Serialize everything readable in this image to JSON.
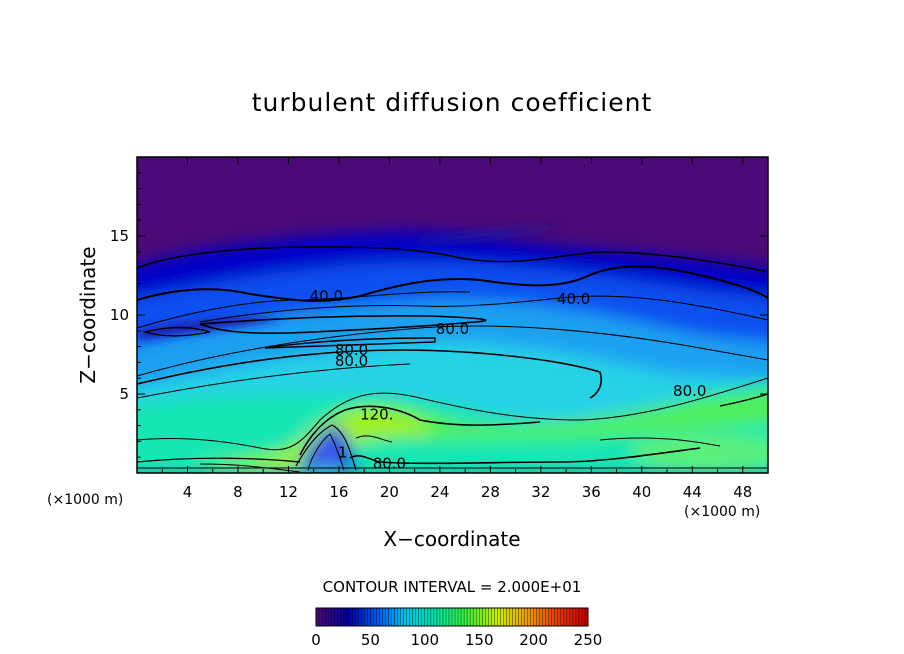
{
  "chart_data": {
    "type": "heatmap",
    "title": "turbulent diffusion coefficient",
    "xlabel": "X−coordinate",
    "ylabel": "Z−coordinate",
    "x_unit": "(×1000 m)",
    "y_unit": "(×1000 m)",
    "xlim": [
      0,
      50
    ],
    "ylim": [
      0,
      20
    ],
    "x_ticks": [
      4,
      8,
      12,
      16,
      20,
      24,
      28,
      32,
      36,
      40,
      44,
      48
    ],
    "y_ticks": [
      5,
      10,
      15
    ],
    "contour_interval_text": "CONTOUR INTERVAL = 2.000E+01",
    "contour_labels": [
      {
        "text": "40.0",
        "x": 15.0,
        "z": 11.2
      },
      {
        "text": "40.0",
        "x": 34.6,
        "z": 11.0
      },
      {
        "text": "80.0",
        "x": 25.0,
        "z": 9.1
      },
      {
        "text": "80.0",
        "x": 17.0,
        "z": 7.8
      },
      {
        "text": "80.0",
        "x": 17.0,
        "z": 7.1
      },
      {
        "text": "80.0",
        "x": 43.8,
        "z": 5.2
      },
      {
        "text": "120.",
        "x": 19.0,
        "z": 3.7
      },
      {
        "text": "80.0",
        "x": 20.0,
        "z": 0.6
      },
      {
        "text": "1",
        "x": 16.3,
        "z": 1.3
      }
    ],
    "colorbar": {
      "min": 0,
      "max": 250,
      "ticks": [
        0,
        50,
        100,
        150,
        200,
        250
      ],
      "colors": [
        "#4b0a78",
        "#0000a0",
        "#0058f0",
        "#00c8e6",
        "#00e6a0",
        "#3cf03c",
        "#c8f000",
        "#f0a000",
        "#e63c00",
        "#c80000"
      ]
    }
  }
}
